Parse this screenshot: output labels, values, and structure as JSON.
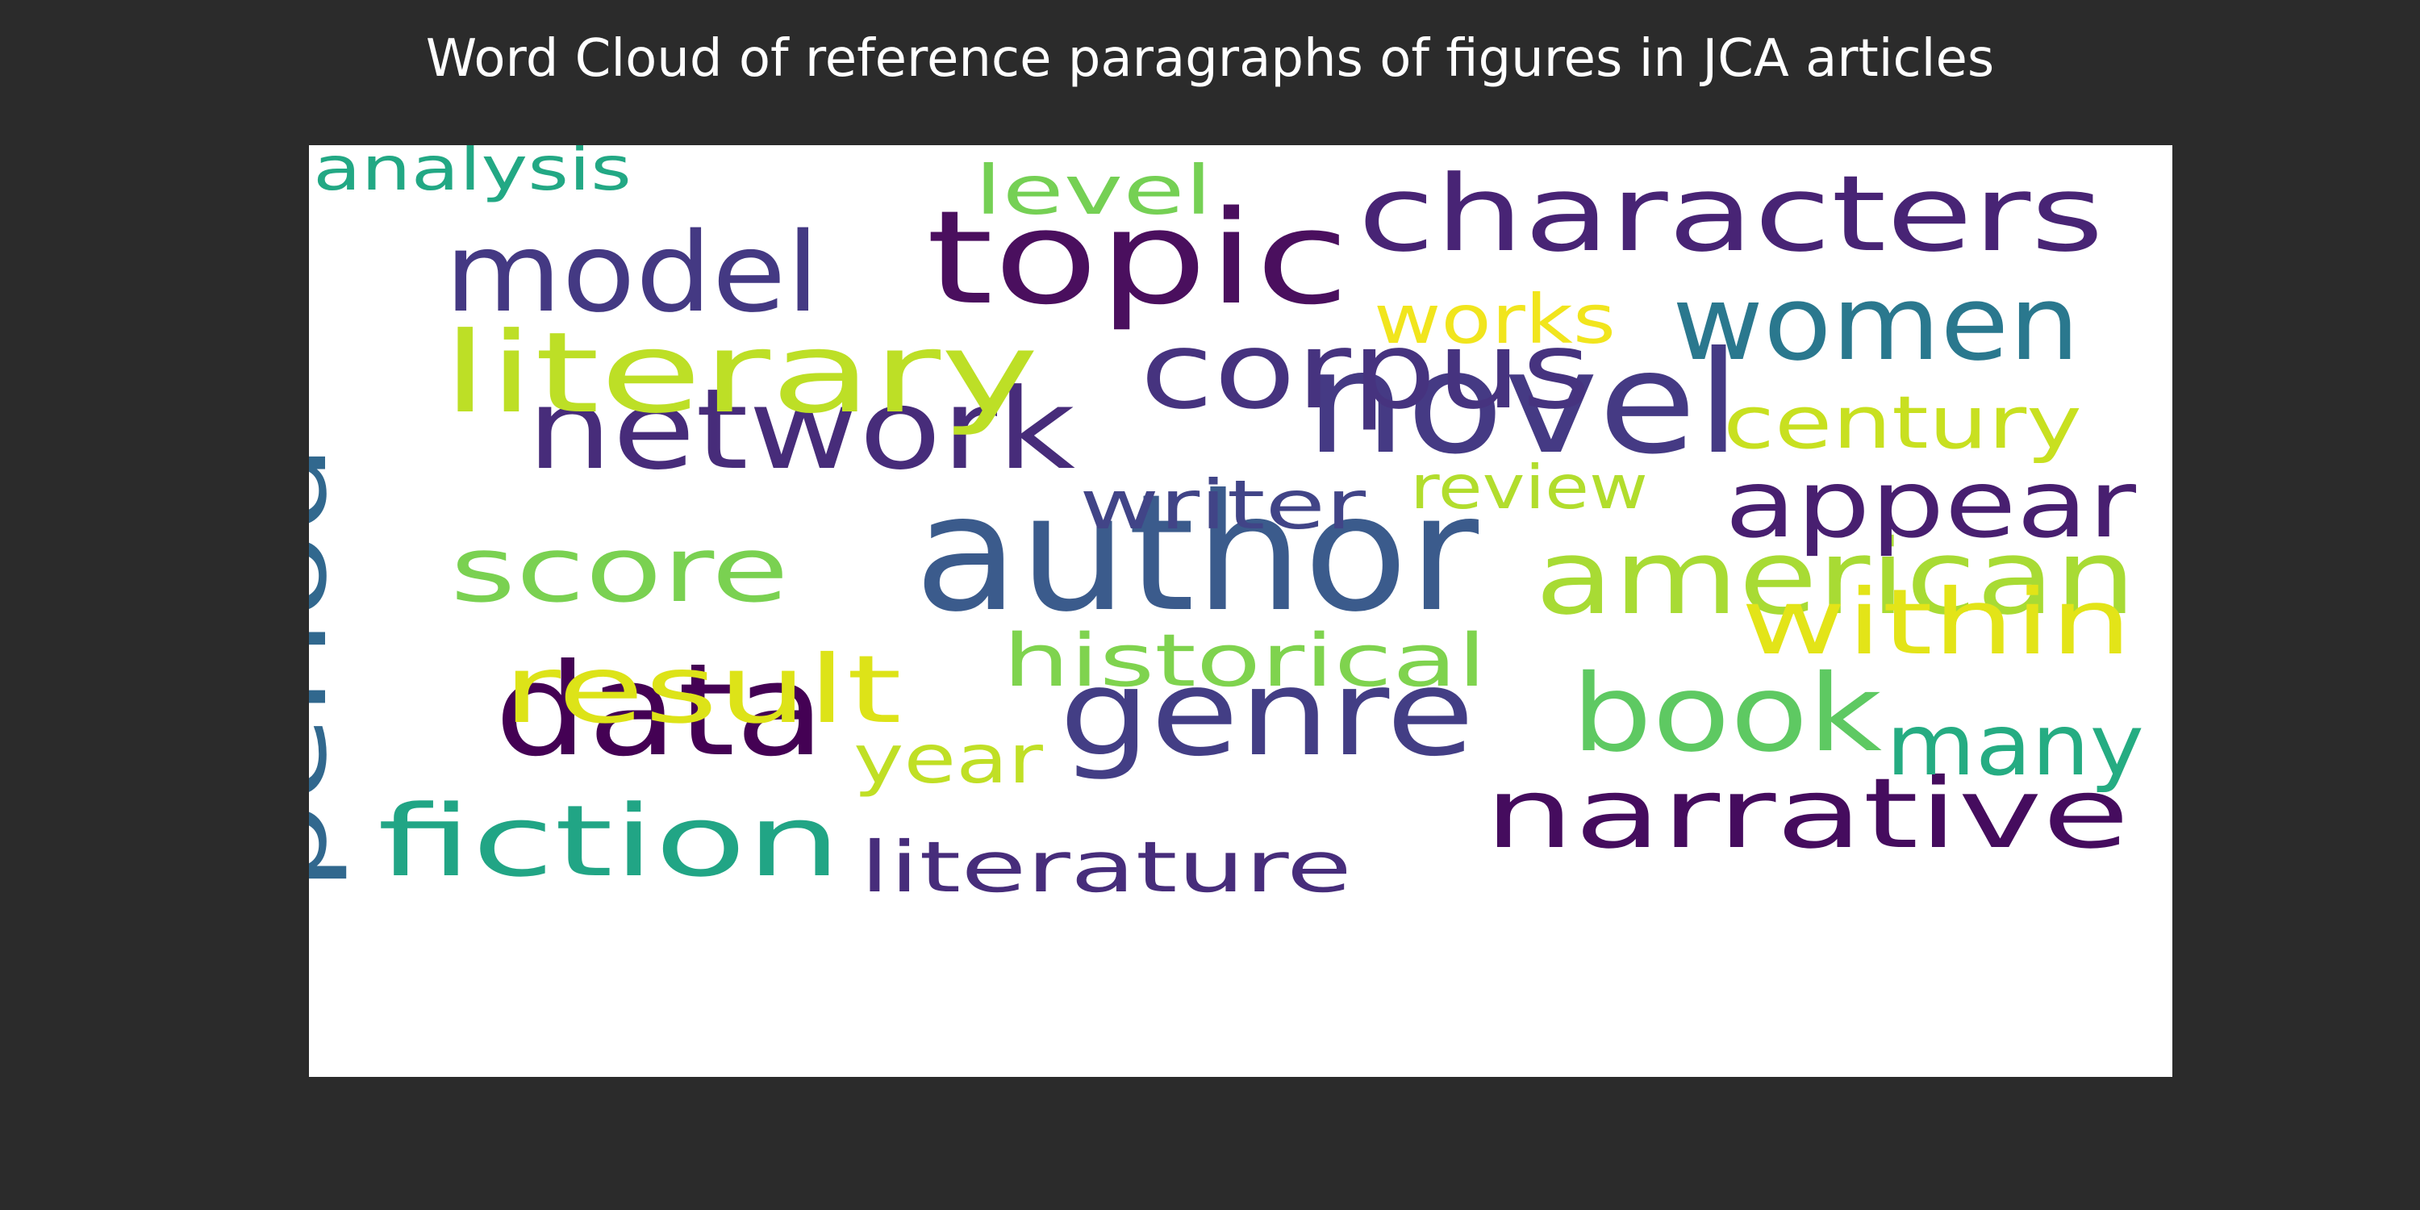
{
  "chart_data": {
    "type": "wordcloud",
    "title": "Word Cloud of reference paragraphs of figures in JCA articles",
    "colormap": "viridis",
    "background_color": "#ffffff",
    "figure_background_color": "#2b2b2b",
    "words": [
      {
        "text": "author",
        "color": "#3b5b8c"
      },
      {
        "text": "novel",
        "color": "#453a84"
      },
      {
        "text": "topic",
        "color": "#4a0f5e"
      },
      {
        "text": "genre",
        "color": "#433e85"
      },
      {
        "text": "data",
        "color": "#440154"
      },
      {
        "text": "network",
        "color": "#472c7a"
      },
      {
        "text": "characters",
        "color": "#482475"
      },
      {
        "text": "corpus",
        "color": "#46337f"
      },
      {
        "text": "literary",
        "color": "#bddf26"
      },
      {
        "text": "american",
        "color": "#a8db34"
      },
      {
        "text": "narrative",
        "color": "#450c5e"
      },
      {
        "text": "women",
        "color": "#2a788e"
      },
      {
        "text": "book",
        "color": "#5ec962"
      },
      {
        "text": "model",
        "color": "#443983"
      },
      {
        "text": "period",
        "color": "#31688e"
      },
      {
        "text": "fiction",
        "color": "#21a585"
      },
      {
        "text": "result",
        "color": "#dde318"
      },
      {
        "text": "appear",
        "color": "#481f70"
      },
      {
        "text": "score",
        "color": "#7ad151"
      },
      {
        "text": "within",
        "color": "#e3e418"
      },
      {
        "text": "many",
        "color": "#25ac82"
      },
      {
        "text": "historical",
        "color": "#7fd34e"
      },
      {
        "text": "century",
        "color": "#c8e020"
      },
      {
        "text": "literature",
        "color": "#472d7b"
      },
      {
        "text": "writer",
        "color": "#414487"
      },
      {
        "text": "works",
        "color": "#f1e51d"
      },
      {
        "text": "year",
        "color": "#c0df25"
      },
      {
        "text": "level",
        "color": "#75d054"
      },
      {
        "text": "review",
        "color": "#b2dd2d"
      },
      {
        "text": "analysis",
        "color": "#22a884"
      }
    ]
  }
}
